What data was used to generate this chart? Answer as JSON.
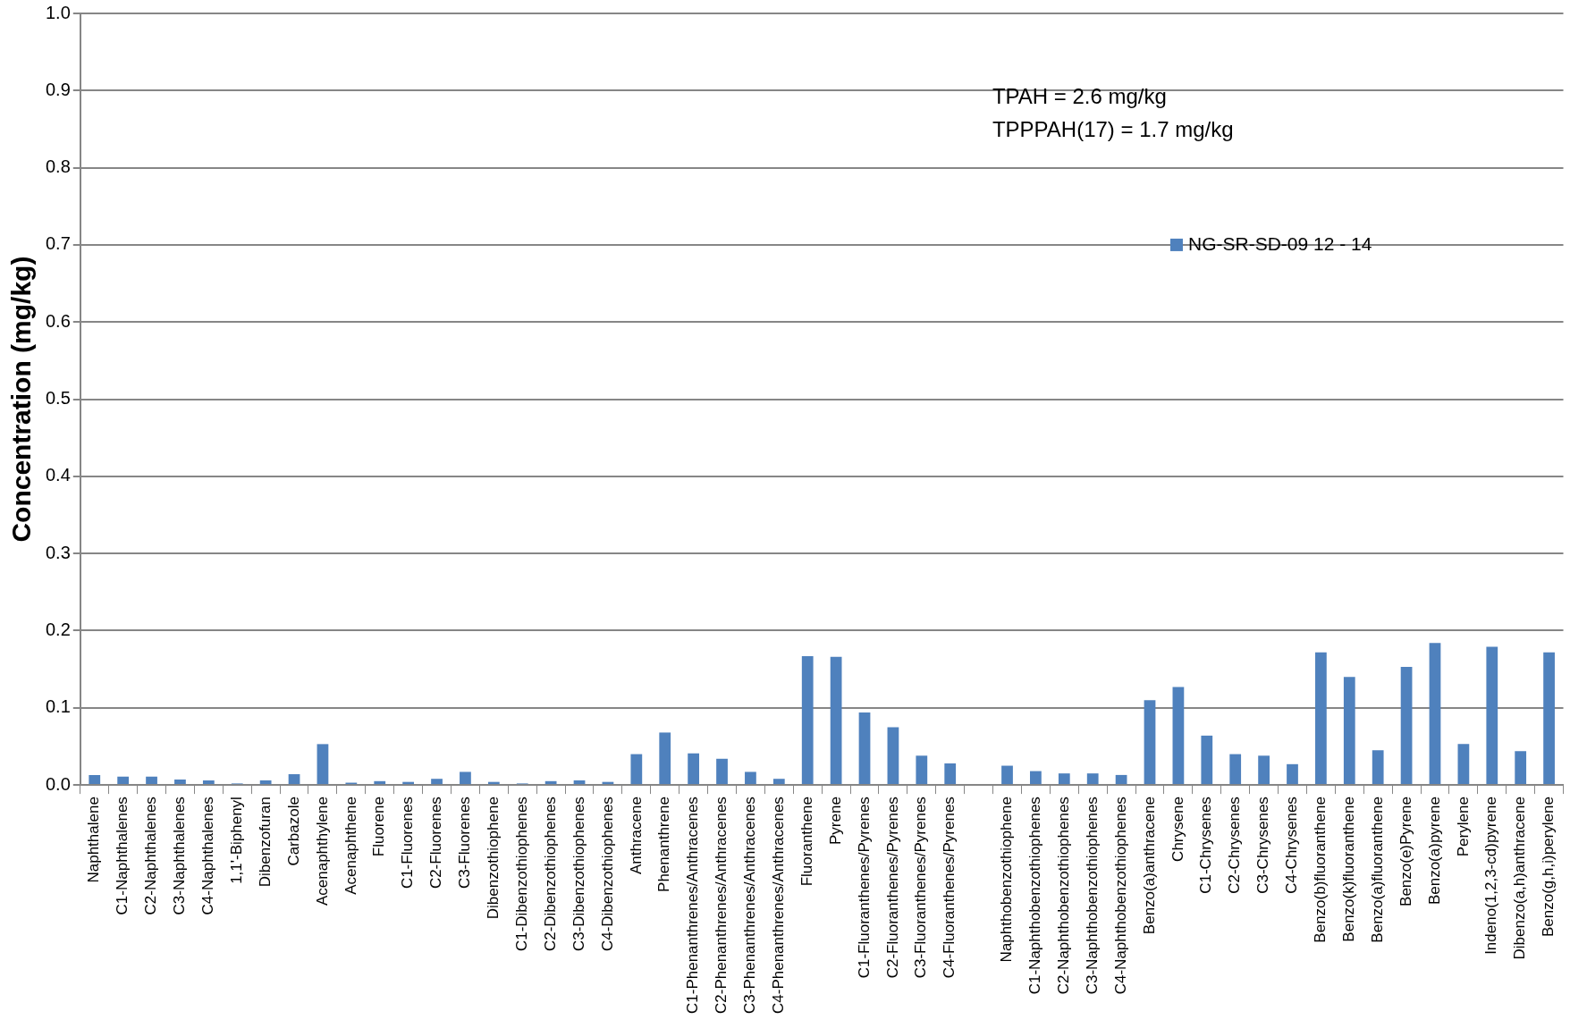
{
  "chart_data": {
    "type": "bar",
    "ylabel": "Concentration (mg/kg)",
    "categories": [
      "Naphthalene",
      "C1-Naphthalenes",
      "C2-Naphthalenes",
      "C3-Naphthalenes",
      "C4-Naphthalenes",
      "1,1'-Biphenyl",
      "Dibenzofuran",
      "Carbazole",
      "Acenaphthylene",
      "Acenaphthene",
      "Fluorene",
      "C1-Fluorenes",
      "C2-Fluorenes",
      "C3-Fluorenes",
      "Dibenzothiophene",
      "C1-Dibenzothiophenes",
      "C2-Dibenzothiophenes",
      "C3-Dibenzothiophenes",
      "C4-Dibenzothiophenes",
      "Anthracene",
      "Phenanthrene",
      "C1-Phenanthrenes/Anthracenes",
      "C2-Phenanthrenes/Anthracenes",
      "C3-Phenanthrenes/Anthracenes",
      "C4-Phenanthrenes/Anthracenes",
      "Fluoranthene",
      "Pyrene",
      "C1-Fluoranthenes/Pyrenes",
      "C2-Fluoranthenes/Pyrenes",
      "C3-Fluoranthenes/Pyrenes",
      "C4-Fluoranthenes/Pyrenes",
      null,
      "Naphthobenzothiophene",
      "C1-Naphthobenzothiophenes",
      "C2-Naphthobenzothiophenes",
      "C3-Naphthobenzothiophenes",
      "C4-Naphthobenzothiophenes",
      "Benzo(a)anthracene",
      "Chrysene",
      "C1-Chrysenes",
      "C2-Chrysenes",
      "C3-Chrysenes",
      "C4-Chrysenes",
      "Benzo(b)fluoranthene",
      "Benzo(k)fluoranthene",
      "Benzo(a)fluoranthene",
      "Benzo(e)Pyrene",
      "Benzo(a)pyrene",
      "Perylene",
      "Indeno(1,2,3-cd)pyrene",
      "Dibenzo(a,h)anthracene",
      "Benzo(g,h,i)perylene"
    ],
    "series": [
      {
        "name": "NG-SR-SD-09 12 - 14",
        "color": "#4f81bd",
        "values": [
          0.013,
          0.011,
          0.011,
          0.007,
          0.006,
          0.002,
          0.006,
          0.014,
          0.053,
          0.003,
          0.005,
          0.004,
          0.008,
          0.017,
          0.004,
          0.002,
          0.005,
          0.006,
          0.004,
          0.04,
          0.068,
          0.041,
          0.034,
          0.017,
          0.008,
          0.167,
          0.166,
          0.094,
          0.075,
          0.038,
          0.028,
          null,
          0.025,
          0.018,
          0.015,
          0.015,
          0.013,
          0.11,
          0.127,
          0.064,
          0.04,
          0.038,
          0.027,
          0.172,
          0.14,
          0.045,
          0.153,
          0.184,
          0.053,
          0.179,
          0.044,
          0.172
        ]
      }
    ],
    "ylim": [
      0,
      1
    ],
    "yticks": [
      {
        "value": 0,
        "label": "0.0"
      },
      {
        "value": 0.1,
        "label": "0.1"
      },
      {
        "value": 0.2,
        "label": "0.2"
      },
      {
        "value": 0.3,
        "label": "0.3"
      },
      {
        "value": 0.4,
        "label": "0.4"
      },
      {
        "value": 0.5,
        "label": "0.5"
      },
      {
        "value": 0.6,
        "label": "0.6"
      },
      {
        "value": 0.7,
        "label": "0.7"
      },
      {
        "value": 0.8,
        "label": "0.8"
      },
      {
        "value": 0.9,
        "label": "0.9"
      },
      {
        "value": 1,
        "label": "1.0"
      }
    ],
    "grid": "y",
    "legend": "top right",
    "annotations": [
      "TPAH = 2.6 mg/kg",
      "TPPPAH(17) = 1.7 mg/kg"
    ]
  }
}
